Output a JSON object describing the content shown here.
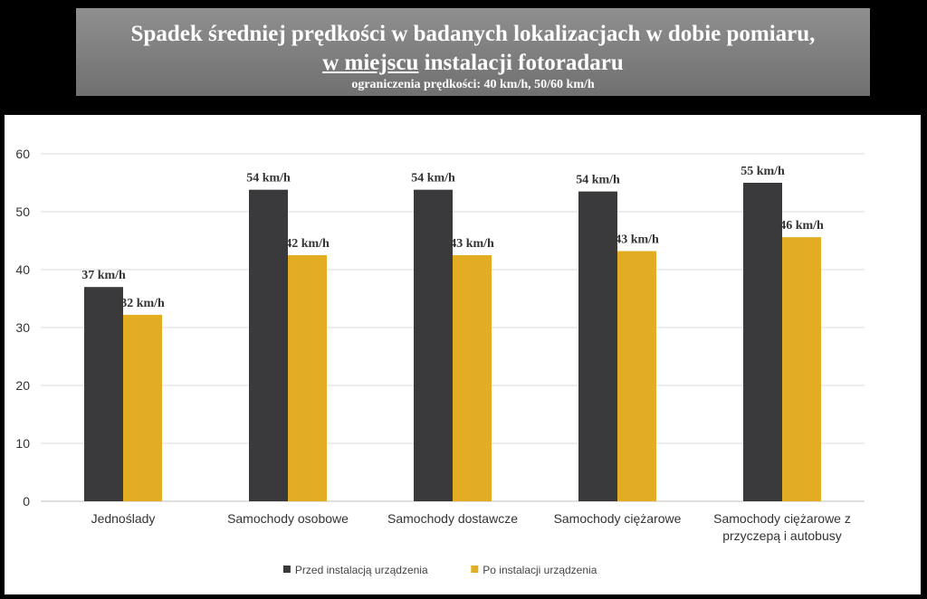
{
  "header": {
    "title_line1": "Spadek średniej prędkości w badanych lokalizacjach w dobie pomiaru,",
    "title_line2_underlined": "w miejscu",
    "title_line2_rest": " instalacji fotoradaru",
    "subtitle": "ograniczenia prędkości: 40 km/h, 50/60 km/h"
  },
  "colors": {
    "before": "#3a3a3c",
    "after": "#e2ad22",
    "grid": "#d9d9d9"
  },
  "chart_data": {
    "type": "bar",
    "categories": [
      [
        "Jednoślady"
      ],
      [
        "Samochody osobowe"
      ],
      [
        "Samochody dostawcze"
      ],
      [
        "Samochody ciężarowe"
      ],
      [
        "Samochody ciężarowe z",
        "przyczepą i autobusy"
      ]
    ],
    "ylim": [
      0,
      60
    ],
    "yticks": [
      0,
      10,
      20,
      30,
      40,
      50,
      60
    ],
    "series": [
      {
        "name": "Przed instalacją urządzenia",
        "values": [
          37,
          53.8,
          53.8,
          53.5,
          55
        ],
        "labels": [
          "37 km/h",
          "54 km/h",
          "54 km/h",
          "54 km/h",
          "55 km/h"
        ]
      },
      {
        "name": "Po instalacji urządzenia",
        "values": [
          32.2,
          42.5,
          42.5,
          43.2,
          45.6
        ],
        "labels": [
          "32 km/h",
          "42 km/h",
          "43 km/h",
          "43 km/h",
          "46 km/h"
        ]
      }
    ],
    "legend_position": "bottom",
    "grid": true
  }
}
